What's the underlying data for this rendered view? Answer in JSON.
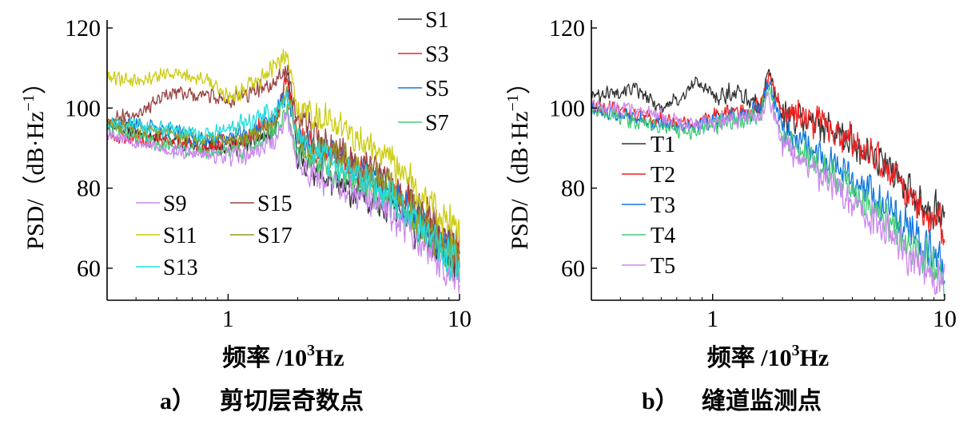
{
  "chart_data": [
    {
      "type": "line",
      "panel": "a",
      "caption_letter": "a）",
      "caption_text": "剪切层奇数点",
      "ylabel_main": "PSD/（dB·Hz",
      "ylabel_sup": "−1",
      "ylabel_end": "）",
      "xlabel_main": "频率 /10",
      "xlabel_sup": "3",
      "xlabel_unit": "Hz",
      "x_scale": "log",
      "xlim": [
        0.3,
        10
      ],
      "ylim": [
        52,
        122
      ],
      "x_ticks": [
        {
          "value": 1,
          "label": "1"
        },
        {
          "value": 10,
          "label": "10"
        }
      ],
      "y_ticks": [
        {
          "value": 60,
          "label": "60"
        },
        {
          "value": 80,
          "label": "80"
        },
        {
          "value": 100,
          "label": "100"
        },
        {
          "value": 120,
          "label": "120"
        }
      ],
      "legend_groups": [
        "top-right",
        "lower-left"
      ],
      "series": [
        {
          "name": "S1",
          "color": "#333333",
          "legend_group": 0,
          "seed": 11,
          "pts": [
            [
              0.3,
              96
            ],
            [
              0.5,
              93
            ],
            [
              0.8,
              90
            ],
            [
              1.2,
              91
            ],
            [
              1.6,
              94
            ],
            [
              1.8,
              109
            ],
            [
              2.0,
              88
            ],
            [
              3.0,
              80
            ],
            [
              5.0,
              76
            ],
            [
              7.0,
              68
            ],
            [
              10,
              60
            ]
          ]
        },
        {
          "name": "S3",
          "color": "#ee2222",
          "legend_group": 0,
          "seed": 23,
          "pts": [
            [
              0.3,
              93
            ],
            [
              0.5,
              92
            ],
            [
              0.8,
              90
            ],
            [
              1.2,
              93
            ],
            [
              1.6,
              97
            ],
            [
              1.8,
              108
            ],
            [
              2.0,
              92
            ],
            [
              3.0,
              87
            ],
            [
              5.0,
              80
            ],
            [
              7.0,
              72
            ],
            [
              10,
              62
            ]
          ]
        },
        {
          "name": "S5",
          "color": "#1177dd",
          "legend_group": 0,
          "seed": 37,
          "pts": [
            [
              0.3,
              97
            ],
            [
              0.5,
              95
            ],
            [
              0.8,
              92
            ],
            [
              1.2,
              93
            ],
            [
              1.6,
              98
            ],
            [
              1.8,
              104
            ],
            [
              2.0,
              92
            ],
            [
              3.0,
              88
            ],
            [
              5.0,
              80
            ],
            [
              7.0,
              72
            ],
            [
              10,
              62
            ]
          ]
        },
        {
          "name": "S7",
          "color": "#44cc77",
          "legend_group": 0,
          "seed": 41,
          "pts": [
            [
              0.3,
              95
            ],
            [
              0.5,
              91
            ],
            [
              0.8,
              89
            ],
            [
              1.2,
              90
            ],
            [
              1.6,
              94
            ],
            [
              1.8,
              100
            ],
            [
              2.0,
              88
            ],
            [
              3.0,
              84
            ],
            [
              5.0,
              77
            ],
            [
              7.0,
              70
            ],
            [
              10,
              60
            ]
          ]
        },
        {
          "name": "S9",
          "color": "#cc88ee",
          "legend_group": 1,
          "seed": 53,
          "pts": [
            [
              0.3,
              94
            ],
            [
              0.5,
              90
            ],
            [
              0.8,
              88
            ],
            [
              1.2,
              88
            ],
            [
              1.6,
              92
            ],
            [
              1.8,
              98
            ],
            [
              2.0,
              86
            ],
            [
              3.0,
              80
            ],
            [
              5.0,
              74
            ],
            [
              7.0,
              66
            ],
            [
              10,
              58
            ]
          ]
        },
        {
          "name": "S15",
          "color": "#994444",
          "legend_group": 1,
          "seed": 67,
          "pts": [
            [
              0.3,
              97
            ],
            [
              0.4,
              99
            ],
            [
              0.6,
              104
            ],
            [
              0.8,
              103
            ],
            [
              1.0,
              102
            ],
            [
              1.3,
              104
            ],
            [
              1.6,
              106
            ],
            [
              1.8,
              110
            ],
            [
              2.0,
              97
            ],
            [
              3.0,
              90
            ],
            [
              5.0,
              82
            ],
            [
              7.0,
              74
            ],
            [
              10,
              64
            ]
          ]
        },
        {
          "name": "S11",
          "color": "#cccc11",
          "legend_group": 1,
          "seed": 79,
          "pts": [
            [
              0.3,
              108
            ],
            [
              0.4,
              107
            ],
            [
              0.5,
              108
            ],
            [
              0.6,
              109
            ],
            [
              0.8,
              107
            ],
            [
              1.0,
              103
            ],
            [
              1.3,
              106
            ],
            [
              1.6,
              110
            ],
            [
              1.8,
              114
            ],
            [
              2.0,
              100
            ],
            [
              3.0,
              96
            ],
            [
              5.0,
              87
            ],
            [
              7.0,
              78
            ],
            [
              10,
              68
            ]
          ]
        },
        {
          "name": "S17",
          "color": "#999922",
          "legend_group": 1,
          "seed": 83,
          "pts": [
            [
              0.3,
              96
            ],
            [
              0.5,
              94
            ],
            [
              0.8,
              92
            ],
            [
              1.2,
              93
            ],
            [
              1.6,
              97
            ],
            [
              1.8,
              104
            ],
            [
              2.0,
              92
            ],
            [
              3.0,
              88
            ],
            [
              5.0,
              80
            ],
            [
              7.0,
              71
            ],
            [
              10,
              62
            ]
          ]
        },
        {
          "name": "S13",
          "color": "#22dddd",
          "legend_group": 1,
          "seed": 97,
          "pts": [
            [
              0.3,
              97
            ],
            [
              0.5,
              95
            ],
            [
              0.8,
              93
            ],
            [
              1.2,
              96
            ],
            [
              1.6,
              99
            ],
            [
              1.8,
              103
            ],
            [
              2.0,
              92
            ],
            [
              3.0,
              85
            ],
            [
              5.0,
              78
            ],
            [
              7.0,
              70
            ],
            [
              10,
              60
            ]
          ]
        }
      ],
      "legend_layout": [
        [
          "S1"
        ],
        [
          "S3"
        ],
        [
          "S5"
        ],
        [
          "S7"
        ],
        [
          "S9",
          "S15"
        ],
        [
          "S11",
          "S17"
        ],
        [
          "S13"
        ]
      ]
    },
    {
      "type": "line",
      "panel": "b",
      "caption_letter": "b）",
      "caption_text": "缝道监测点",
      "ylabel_main": "PSD/（dB·Hz",
      "ylabel_sup": "−1",
      "ylabel_end": "）",
      "xlabel_main": "频率 /10",
      "xlabel_sup": "3",
      "xlabel_unit": "Hz",
      "x_scale": "log",
      "xlim": [
        0.3,
        10
      ],
      "ylim": [
        52,
        122
      ],
      "x_ticks": [
        {
          "value": 1,
          "label": "1"
        },
        {
          "value": 10,
          "label": "10"
        }
      ],
      "y_ticks": [
        {
          "value": 60,
          "label": "60"
        },
        {
          "value": 80,
          "label": "80"
        },
        {
          "value": 100,
          "label": "100"
        },
        {
          "value": 120,
          "label": "120"
        }
      ],
      "legend_groups": [
        "left"
      ],
      "series": [
        {
          "name": "T1",
          "color": "#333333",
          "legend_group": 0,
          "seed": 101,
          "pts": [
            [
              0.3,
              103
            ],
            [
              0.45,
              105
            ],
            [
              0.6,
              100
            ],
            [
              0.75,
              103
            ],
            [
              0.85,
              107
            ],
            [
              1.0,
              103
            ],
            [
              1.3,
              104
            ],
            [
              1.6,
              100
            ],
            [
              1.75,
              109
            ],
            [
              2.0,
              98
            ],
            [
              3.0,
              96
            ],
            [
              5.0,
              88
            ],
            [
              7.0,
              80
            ],
            [
              10,
              72
            ]
          ]
        },
        {
          "name": "T2",
          "color": "#ee2222",
          "legend_group": 0,
          "seed": 113,
          "pts": [
            [
              0.3,
              101
            ],
            [
              0.5,
              98
            ],
            [
              0.8,
              96
            ],
            [
              1.2,
              99
            ],
            [
              1.6,
              100
            ],
            [
              1.75,
              108
            ],
            [
              2.0,
              99
            ],
            [
              3.0,
              96
            ],
            [
              5.0,
              88
            ],
            [
              7.0,
              79
            ],
            [
              10,
              70
            ]
          ]
        },
        {
          "name": "T3",
          "color": "#1177dd",
          "legend_group": 0,
          "seed": 127,
          "pts": [
            [
              0.3,
              100
            ],
            [
              0.5,
              97
            ],
            [
              0.8,
              95
            ],
            [
              1.2,
              98
            ],
            [
              1.6,
              99
            ],
            [
              1.75,
              106
            ],
            [
              2.0,
              95
            ],
            [
              3.0,
              88
            ],
            [
              5.0,
              78
            ],
            [
              7.0,
              70
            ],
            [
              10,
              60
            ]
          ]
        },
        {
          "name": "T4",
          "color": "#44cc77",
          "legend_group": 0,
          "seed": 131,
          "pts": [
            [
              0.3,
              100
            ],
            [
              0.5,
              96
            ],
            [
              0.8,
              94
            ],
            [
              1.2,
              97
            ],
            [
              1.6,
              98
            ],
            [
              1.75,
              104
            ],
            [
              2.0,
              92
            ],
            [
              3.0,
              85
            ],
            [
              5.0,
              75
            ],
            [
              7.0,
              66
            ],
            [
              10,
              58
            ]
          ]
        },
        {
          "name": "T5",
          "color": "#cc88ee",
          "legend_group": 0,
          "seed": 137,
          "pts": [
            [
              0.3,
              101
            ],
            [
              0.5,
              99
            ],
            [
              0.8,
              96
            ],
            [
              1.2,
              97
            ],
            [
              1.6,
              98
            ],
            [
              1.75,
              103
            ],
            [
              2.0,
              91
            ],
            [
              3.0,
              82
            ],
            [
              5.0,
              72
            ],
            [
              7.0,
              63
            ],
            [
              10,
              56
            ]
          ]
        }
      ],
      "legend_layout": [
        [
          "T1"
        ],
        [
          "T2"
        ],
        [
          "T3"
        ],
        [
          "T4"
        ],
        [
          "T5"
        ]
      ]
    }
  ]
}
